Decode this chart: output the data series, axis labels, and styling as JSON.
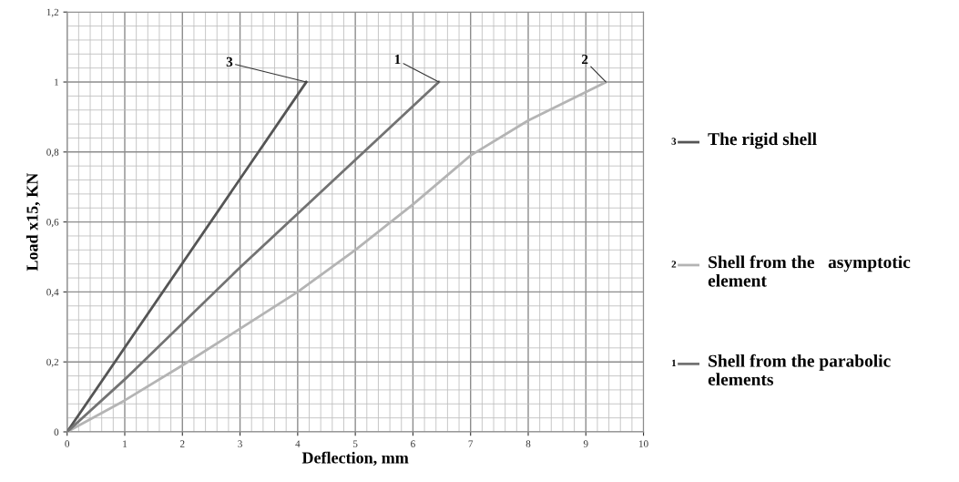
{
  "chart_data": {
    "type": "line",
    "xlabel": "Deflection, mm",
    "ylabel": "Load x15, KN",
    "xlim": [
      0,
      10
    ],
    "xticks": [
      0,
      1,
      2,
      3,
      4,
      5,
      6,
      7,
      8,
      9,
      10
    ],
    "ylim": [
      0,
      1.2
    ],
    "yticks": [
      0,
      {
        "value": 0.2,
        "label": "0,2"
      },
      {
        "value": 0.4,
        "label": "0,4"
      },
      {
        "value": 0.6,
        "label": "0,6"
      },
      {
        "value": 0.8,
        "label": "0,8"
      },
      1,
      {
        "value": 1.2,
        "label": "1,2"
      }
    ],
    "grid": true,
    "legend": "right",
    "marker": "none",
    "line_style": "solid",
    "series": [
      {
        "name": "The rigid shell",
        "color": "#555555",
        "x": [
          0,
          4.15
        ],
        "values": [
          0,
          1.0
        ]
      },
      {
        "name": "Shell from the   asymptotic element",
        "color": "#b4b4b4",
        "x": [
          0,
          1,
          2,
          4,
          5,
          6,
          7,
          8,
          9.35
        ],
        "values": [
          0,
          0.09,
          0.19,
          0.4,
          0.52,
          0.65,
          0.79,
          0.89,
          1.0
        ]
      },
      {
        "name": "Shell from the parabolic elements",
        "color": "#737373",
        "x": [
          0,
          1,
          3,
          6.45
        ],
        "values": [
          0,
          0.15,
          0.47,
          1.0
        ]
      }
    ],
    "annotations": [
      {
        "text": "3",
        "x": 4.15,
        "y": 1.0
      },
      {
        "text": "2",
        "x": 9.35,
        "y": 1.0
      },
      {
        "text": "1",
        "x": 6.45,
        "y": 1.0
      }
    ]
  }
}
